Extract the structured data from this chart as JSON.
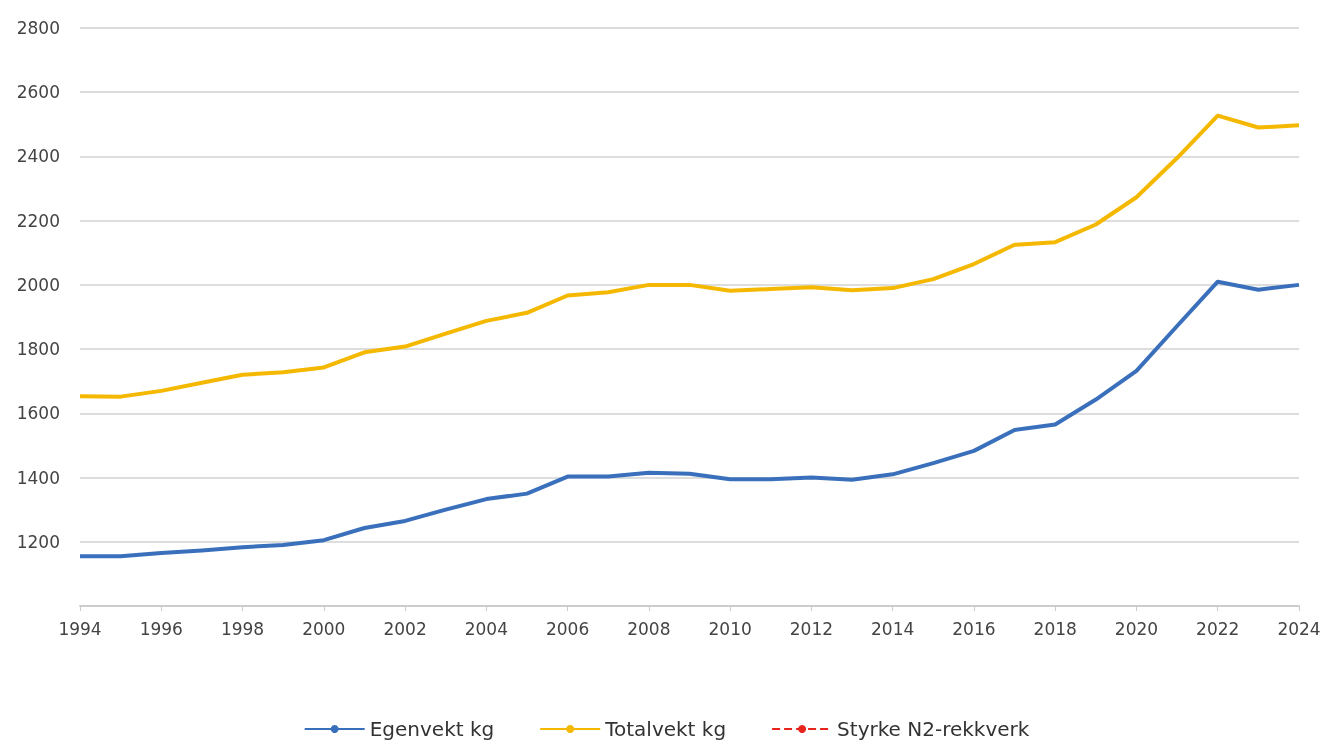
{
  "chart_data": {
    "type": "line",
    "x": [
      1994,
      1995,
      1996,
      1997,
      1998,
      1999,
      2000,
      2001,
      2002,
      2003,
      2004,
      2005,
      2006,
      2007,
      2008,
      2009,
      2010,
      2011,
      2012,
      2013,
      2014,
      2015,
      2016,
      2017,
      2018,
      2019,
      2020,
      2021,
      2022,
      2023,
      2024
    ],
    "series": [
      {
        "name": "Egenvekt kg",
        "color": "#3a70bb",
        "line_style": "solid",
        "values": [
          1155,
          1155,
          1165,
          1173,
          1183,
          1190,
          1205,
          1243,
          1265,
          1300,
          1333,
          1350,
          1403,
          1403,
          1415,
          1412,
          1395,
          1395,
          1400,
          1393,
          1410,
          1445,
          1483,
          1548,
          1565,
          1643,
          1732,
          1872,
          2010,
          1985,
          2000
        ]
      },
      {
        "name": "Totalvekt kg",
        "color": "#f5b800",
        "line_style": "solid",
        "values": [
          1653,
          1652,
          1670,
          1695,
          1720,
          1728,
          1743,
          1790,
          1808,
          1848,
          1888,
          1913,
          1967,
          1977,
          2000,
          2000,
          1982,
          1987,
          1993,
          1983,
          1990,
          2018,
          2065,
          2125,
          2133,
          2188,
          2273,
          2395,
          2527,
          2490,
          2497
        ]
      },
      {
        "name": "Styrke N2-rekkverk",
        "color": "#e8231c",
        "line_style": "dashed",
        "values": [
          null,
          null,
          null,
          null,
          null,
          null,
          null,
          null,
          null,
          null,
          null,
          null,
          null,
          null,
          null,
          null,
          null,
          null,
          null,
          null,
          null,
          null,
          null,
          null,
          null,
          null,
          null,
          null,
          null,
          null,
          null
        ]
      }
    ],
    "xlim": [
      1994,
      2024
    ],
    "xticks": [
      1994,
      1996,
      1998,
      2000,
      2002,
      2004,
      2006,
      2008,
      2010,
      2012,
      2014,
      2016,
      2018,
      2020,
      2022,
      2024
    ],
    "ylim": [
      1000,
      2800
    ],
    "yticks": [
      {
        "value": 1000,
        "label": null
      },
      1200,
      1400,
      1600,
      1800,
      2000,
      2200,
      2400,
      2600,
      2800
    ],
    "grid": "y",
    "legend": "bottom",
    "marker": "none"
  }
}
